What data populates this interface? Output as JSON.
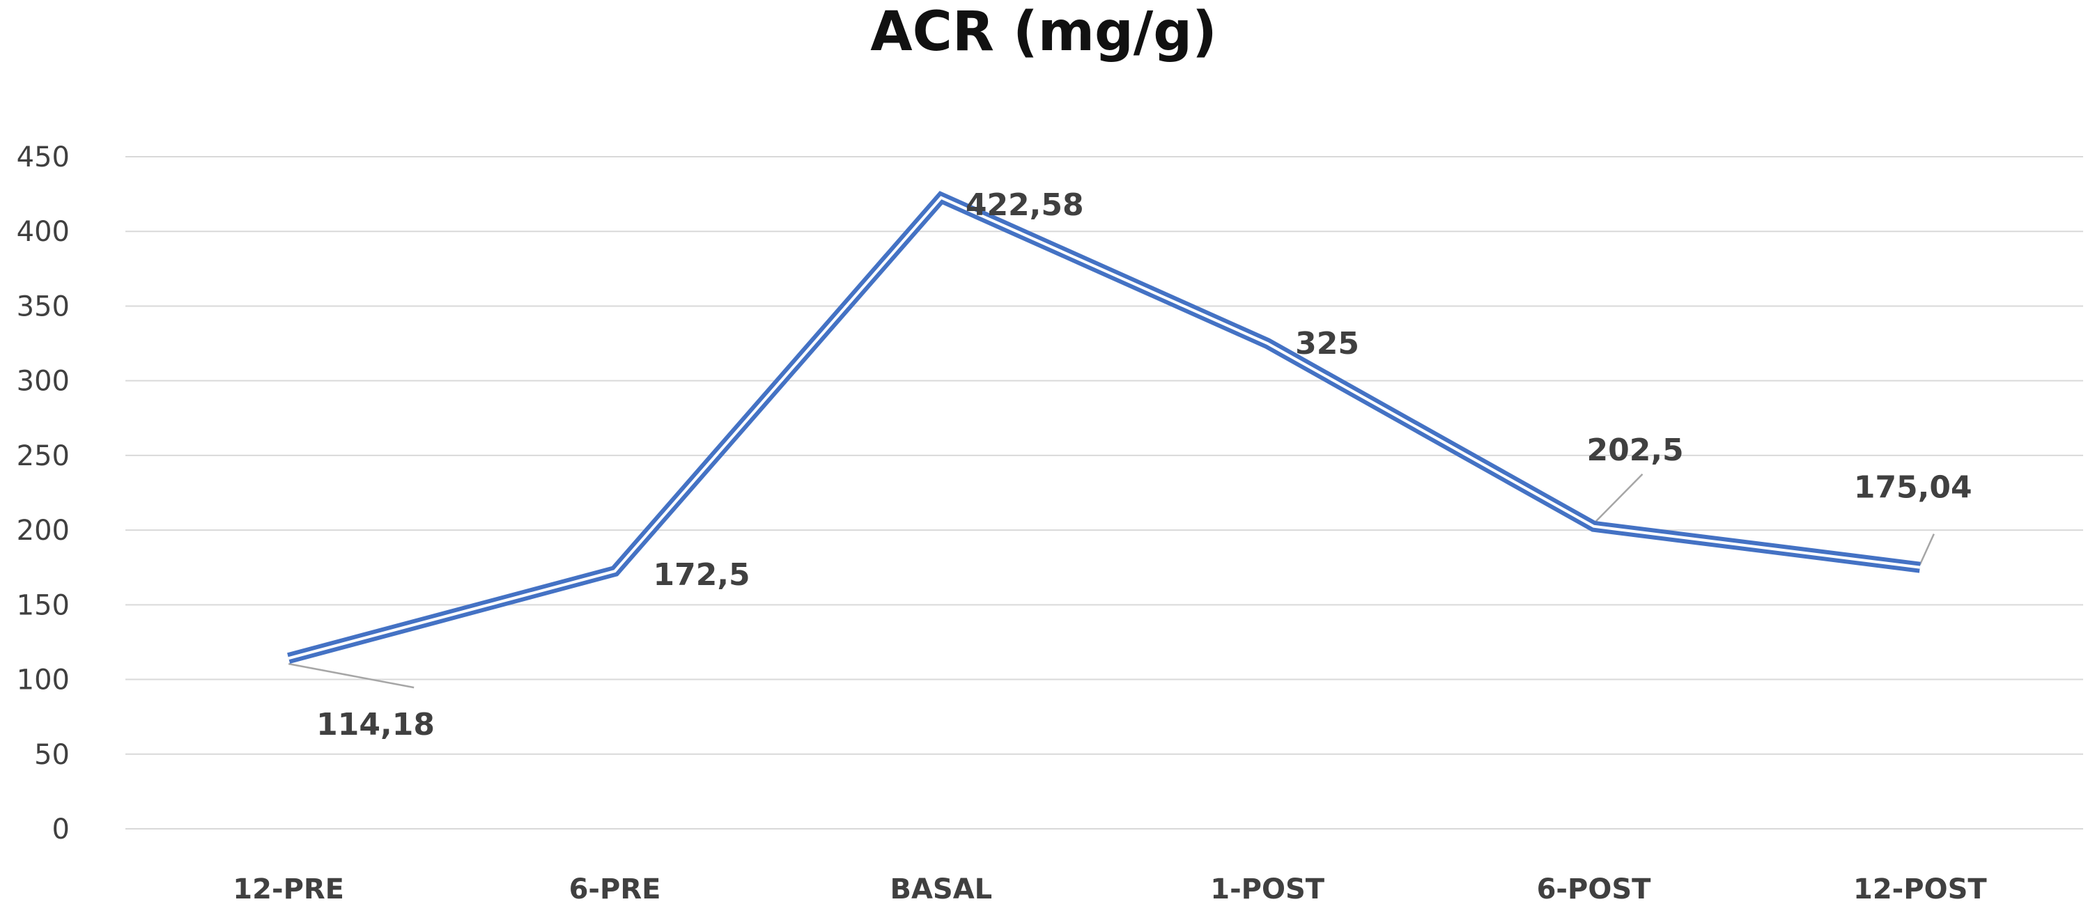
{
  "chart_data": {
    "type": "line",
    "title": "ACR (mg/g)",
    "categories": [
      "12-PRE",
      "6-PRE",
      "BASAL",
      "1-POST",
      "6-POST",
      "12-POST"
    ],
    "series": [
      {
        "values": [
          114.18,
          172.5,
          422.58,
          325,
          202.5,
          175.04
        ],
        "data_labels": [
          "114,18",
          "172,5",
          "422,58",
          "325",
          "202,5",
          "175,04"
        ]
      }
    ],
    "ylim": [
      0,
      450
    ],
    "yticks": [
      0,
      50,
      100,
      150,
      200,
      250,
      300,
      350,
      400,
      450
    ],
    "grid": true,
    "legend": "none",
    "line_color": "#4472C4"
  }
}
